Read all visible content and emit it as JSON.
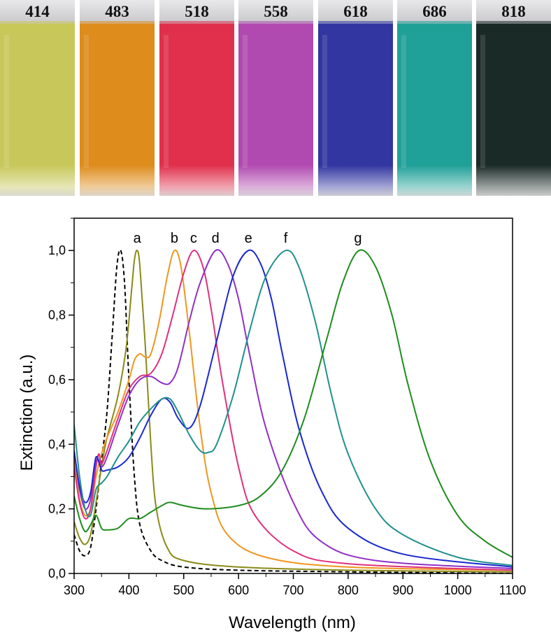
{
  "vials": [
    {
      "label": "414",
      "color": "#c8c85a"
    },
    {
      "label": "483",
      "color": "#de8c1c"
    },
    {
      "label": "518",
      "color": "#e0304c"
    },
    {
      "label": "558",
      "color": "#b14ab0"
    },
    {
      "label": "618",
      "color": "#3236a0"
    },
    {
      "label": "686",
      "color": "#1fa098"
    },
    {
      "label": "818",
      "color": "#1a2a26"
    }
  ],
  "chart_data": {
    "type": "line",
    "xlabel": "Wavelength (nm)",
    "ylabel": "Extinction (a.u.)",
    "xlim": [
      300,
      1100
    ],
    "ylim": [
      0,
      1.1
    ],
    "xticks": [
      300,
      400,
      500,
      600,
      700,
      800,
      900,
      1000,
      1100
    ],
    "xtick_labels": [
      "300",
      "400",
      "500",
      "600",
      "700",
      "800",
      "900",
      "1000",
      "1100"
    ],
    "yticks": [
      0,
      0.2,
      0.4,
      0.6,
      0.8,
      1.0
    ],
    "ytick_labels": [
      "0,0",
      "0,2",
      "0,4",
      "0,6",
      "0,8",
      "1,0"
    ],
    "grid": false,
    "series": [
      {
        "name": "",
        "color": "#000000",
        "dashed": true,
        "points": [
          [
            300,
            0.12
          ],
          [
            310,
            0.07
          ],
          [
            320,
            0.055
          ],
          [
            330,
            0.08
          ],
          [
            340,
            0.2
          ],
          [
            350,
            0.35
          ],
          [
            360,
            0.5
          ],
          [
            370,
            0.75
          ],
          [
            378,
            0.95
          ],
          [
            385,
            1.0
          ],
          [
            392,
            0.9
          ],
          [
            400,
            0.6
          ],
          [
            410,
            0.3
          ],
          [
            420,
            0.15
          ],
          [
            440,
            0.07
          ],
          [
            460,
            0.04
          ],
          [
            500,
            0.02
          ],
          [
            600,
            0.01
          ],
          [
            800,
            0.005
          ],
          [
            1100,
            0.0
          ]
        ]
      },
      {
        "name": "a",
        "color": "#8a8a18",
        "points": [
          [
            300,
            0.16
          ],
          [
            310,
            0.11
          ],
          [
            320,
            0.09
          ],
          [
            330,
            0.12
          ],
          [
            340,
            0.22
          ],
          [
            350,
            0.33
          ],
          [
            360,
            0.42
          ],
          [
            380,
            0.55
          ],
          [
            395,
            0.7
          ],
          [
            405,
            0.88
          ],
          [
            410,
            0.97
          ],
          [
            415,
            1.0
          ],
          [
            420,
            0.95
          ],
          [
            430,
            0.7
          ],
          [
            440,
            0.4
          ],
          [
            450,
            0.2
          ],
          [
            470,
            0.08
          ],
          [
            500,
            0.04
          ],
          [
            600,
            0.02
          ],
          [
            800,
            0.01
          ],
          [
            1100,
            0.005
          ]
        ]
      },
      {
        "name": "b",
        "color": "#f0961e",
        "points": [
          [
            300,
            0.35
          ],
          [
            310,
            0.23
          ],
          [
            320,
            0.18
          ],
          [
            330,
            0.2
          ],
          [
            340,
            0.3
          ],
          [
            350,
            0.37
          ],
          [
            360,
            0.42
          ],
          [
            380,
            0.5
          ],
          [
            400,
            0.6
          ],
          [
            410,
            0.66
          ],
          [
            420,
            0.68
          ],
          [
            430,
            0.67
          ],
          [
            440,
            0.68
          ],
          [
            455,
            0.78
          ],
          [
            470,
            0.92
          ],
          [
            483,
            1.0
          ],
          [
            495,
            0.95
          ],
          [
            510,
            0.75
          ],
          [
            530,
            0.45
          ],
          [
            550,
            0.25
          ],
          [
            580,
            0.12
          ],
          [
            650,
            0.05
          ],
          [
            800,
            0.02
          ],
          [
            1100,
            0.01
          ]
        ]
      },
      {
        "name": "c",
        "color": "#e0307c",
        "points": [
          [
            300,
            0.33
          ],
          [
            310,
            0.22
          ],
          [
            320,
            0.17
          ],
          [
            330,
            0.2
          ],
          [
            340,
            0.33
          ],
          [
            345,
            0.37
          ],
          [
            350,
            0.34
          ],
          [
            360,
            0.38
          ],
          [
            380,
            0.48
          ],
          [
            400,
            0.57
          ],
          [
            420,
            0.61
          ],
          [
            440,
            0.62
          ],
          [
            460,
            0.68
          ],
          [
            480,
            0.8
          ],
          [
            500,
            0.93
          ],
          [
            518,
            1.0
          ],
          [
            535,
            0.95
          ],
          [
            550,
            0.82
          ],
          [
            570,
            0.6
          ],
          [
            600,
            0.33
          ],
          [
            630,
            0.18
          ],
          [
            700,
            0.07
          ],
          [
            800,
            0.03
          ],
          [
            1100,
            0.01
          ]
        ]
      },
      {
        "name": "d",
        "color": "#9030c8",
        "points": [
          [
            300,
            0.38
          ],
          [
            310,
            0.26
          ],
          [
            320,
            0.2
          ],
          [
            330,
            0.23
          ],
          [
            340,
            0.35
          ],
          [
            350,
            0.33
          ],
          [
            360,
            0.36
          ],
          [
            380,
            0.46
          ],
          [
            400,
            0.55
          ],
          [
            420,
            0.6
          ],
          [
            440,
            0.61
          ],
          [
            460,
            0.59
          ],
          [
            475,
            0.59
          ],
          [
            490,
            0.64
          ],
          [
            510,
            0.78
          ],
          [
            530,
            0.9
          ],
          [
            558,
            1.0
          ],
          [
            580,
            0.96
          ],
          [
            600,
            0.85
          ],
          [
            620,
            0.68
          ],
          [
            650,
            0.45
          ],
          [
            700,
            0.22
          ],
          [
            750,
            0.1
          ],
          [
            850,
            0.04
          ],
          [
            1100,
            0.015
          ]
        ]
      },
      {
        "name": "e",
        "color": "#1a28d0",
        "points": [
          [
            300,
            0.38
          ],
          [
            310,
            0.27
          ],
          [
            320,
            0.22
          ],
          [
            330,
            0.25
          ],
          [
            340,
            0.36
          ],
          [
            350,
            0.32
          ],
          [
            360,
            0.32
          ],
          [
            380,
            0.33
          ],
          [
            400,
            0.36
          ],
          [
            420,
            0.42
          ],
          [
            440,
            0.49
          ],
          [
            460,
            0.54
          ],
          [
            475,
            0.53
          ],
          [
            490,
            0.48
          ],
          [
            510,
            0.45
          ],
          [
            530,
            0.52
          ],
          [
            560,
            0.72
          ],
          [
            590,
            0.92
          ],
          [
            618,
            1.0
          ],
          [
            640,
            0.96
          ],
          [
            660,
            0.85
          ],
          [
            680,
            0.68
          ],
          [
            710,
            0.45
          ],
          [
            750,
            0.26
          ],
          [
            800,
            0.14
          ],
          [
            900,
            0.06
          ],
          [
            1100,
            0.02
          ]
        ]
      },
      {
        "name": "f",
        "color": "#20908c",
        "points": [
          [
            300,
            0.46
          ],
          [
            310,
            0.3
          ],
          [
            320,
            0.2
          ],
          [
            330,
            0.18
          ],
          [
            340,
            0.26
          ],
          [
            350,
            0.28
          ],
          [
            360,
            0.3
          ],
          [
            380,
            0.36
          ],
          [
            400,
            0.41
          ],
          [
            420,
            0.47
          ],
          [
            440,
            0.51
          ],
          [
            460,
            0.54
          ],
          [
            475,
            0.54
          ],
          [
            490,
            0.5
          ],
          [
            510,
            0.43
          ],
          [
            530,
            0.38
          ],
          [
            545,
            0.375
          ],
          [
            560,
            0.4
          ],
          [
            590,
            0.55
          ],
          [
            620,
            0.75
          ],
          [
            650,
            0.92
          ],
          [
            686,
            1.0
          ],
          [
            710,
            0.95
          ],
          [
            740,
            0.78
          ],
          [
            770,
            0.55
          ],
          [
            800,
            0.37
          ],
          [
            850,
            0.2
          ],
          [
            900,
            0.12
          ],
          [
            1000,
            0.05
          ],
          [
            1100,
            0.025
          ]
        ]
      },
      {
        "name": "g",
        "color": "#1e8c1e",
        "points": [
          [
            300,
            0.24
          ],
          [
            310,
            0.17
          ],
          [
            320,
            0.13
          ],
          [
            330,
            0.15
          ],
          [
            340,
            0.18
          ],
          [
            350,
            0.14
          ],
          [
            360,
            0.135
          ],
          [
            380,
            0.14
          ],
          [
            400,
            0.17
          ],
          [
            420,
            0.17
          ],
          [
            440,
            0.19
          ],
          [
            460,
            0.21
          ],
          [
            475,
            0.22
          ],
          [
            500,
            0.21
          ],
          [
            540,
            0.2
          ],
          [
            600,
            0.21
          ],
          [
            640,
            0.24
          ],
          [
            680,
            0.32
          ],
          [
            720,
            0.48
          ],
          [
            760,
            0.72
          ],
          [
            790,
            0.9
          ],
          [
            820,
            1.0
          ],
          [
            850,
            0.95
          ],
          [
            880,
            0.8
          ],
          [
            910,
            0.58
          ],
          [
            950,
            0.35
          ],
          [
            1000,
            0.18
          ],
          [
            1050,
            0.1
          ],
          [
            1100,
            0.05
          ]
        ]
      }
    ],
    "annotations": [
      {
        "text": "a",
        "x": 415,
        "y": 1.02
      },
      {
        "text": "b",
        "x": 483,
        "y": 1.02
      },
      {
        "text": "c",
        "x": 518,
        "y": 1.02
      },
      {
        "text": "d",
        "x": 558,
        "y": 1.02
      },
      {
        "text": "e",
        "x": 618,
        "y": 1.02
      },
      {
        "text": "f",
        "x": 686,
        "y": 1.02
      },
      {
        "text": "g",
        "x": 818,
        "y": 1.02
      }
    ]
  }
}
